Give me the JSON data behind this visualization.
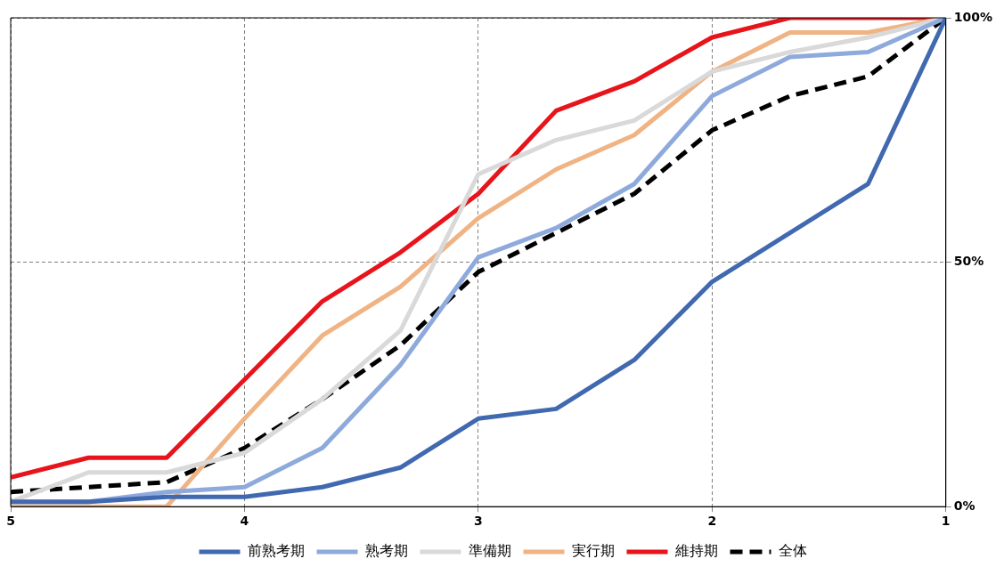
{
  "chart_data": {
    "type": "line",
    "x": [
      5,
      4.667,
      4.333,
      4,
      3.667,
      3.333,
      3,
      2.667,
      2.333,
      2,
      1.667,
      1.333,
      1
    ],
    "xlim": [
      5,
      1
    ],
    "xticks": [
      5,
      4,
      3,
      2,
      1
    ],
    "ylim": [
      0,
      100
    ],
    "yticks": [
      {
        "value": 0,
        "label": "0%"
      },
      {
        "value": 50,
        "label": "50%"
      },
      {
        "value": 100,
        "label": "100%"
      }
    ],
    "grid": true,
    "legend": "bottom",
    "marker": "none",
    "line_style": "solid",
    "series": [
      {
        "name": "前熟考期",
        "color": "#4169b0",
        "values": [
          1,
          1,
          2,
          2,
          4,
          8,
          18,
          20,
          30,
          46,
          56,
          66,
          100
        ]
      },
      {
        "name": "熟考期",
        "color": "#8eaadc",
        "values": [
          1,
          1,
          3,
          4,
          12,
          29,
          51,
          57,
          66,
          84,
          92,
          93,
          100
        ]
      },
      {
        "name": "準備期",
        "color": "#d9d9d9",
        "values": [
          1,
          7,
          7,
          11,
          22,
          36,
          68,
          75,
          79,
          89,
          93,
          96,
          100
        ]
      },
      {
        "name": "実行期",
        "color": "#f0b384",
        "values": [
          0,
          0,
          0,
          18,
          35,
          45,
          59,
          69,
          76,
          89,
          97,
          97,
          100
        ]
      },
      {
        "name": "維持期",
        "color": "#e8141b",
        "values": [
          6,
          10,
          10,
          26,
          42,
          52,
          64,
          81,
          87,
          96,
          100,
          100,
          100
        ]
      },
      {
        "name": "全体",
        "color": "#000000",
        "line_style": "dashed",
        "values": [
          3,
          4,
          5,
          12,
          22,
          33,
          48,
          56,
          64,
          77,
          84,
          88,
          100
        ]
      }
    ]
  }
}
